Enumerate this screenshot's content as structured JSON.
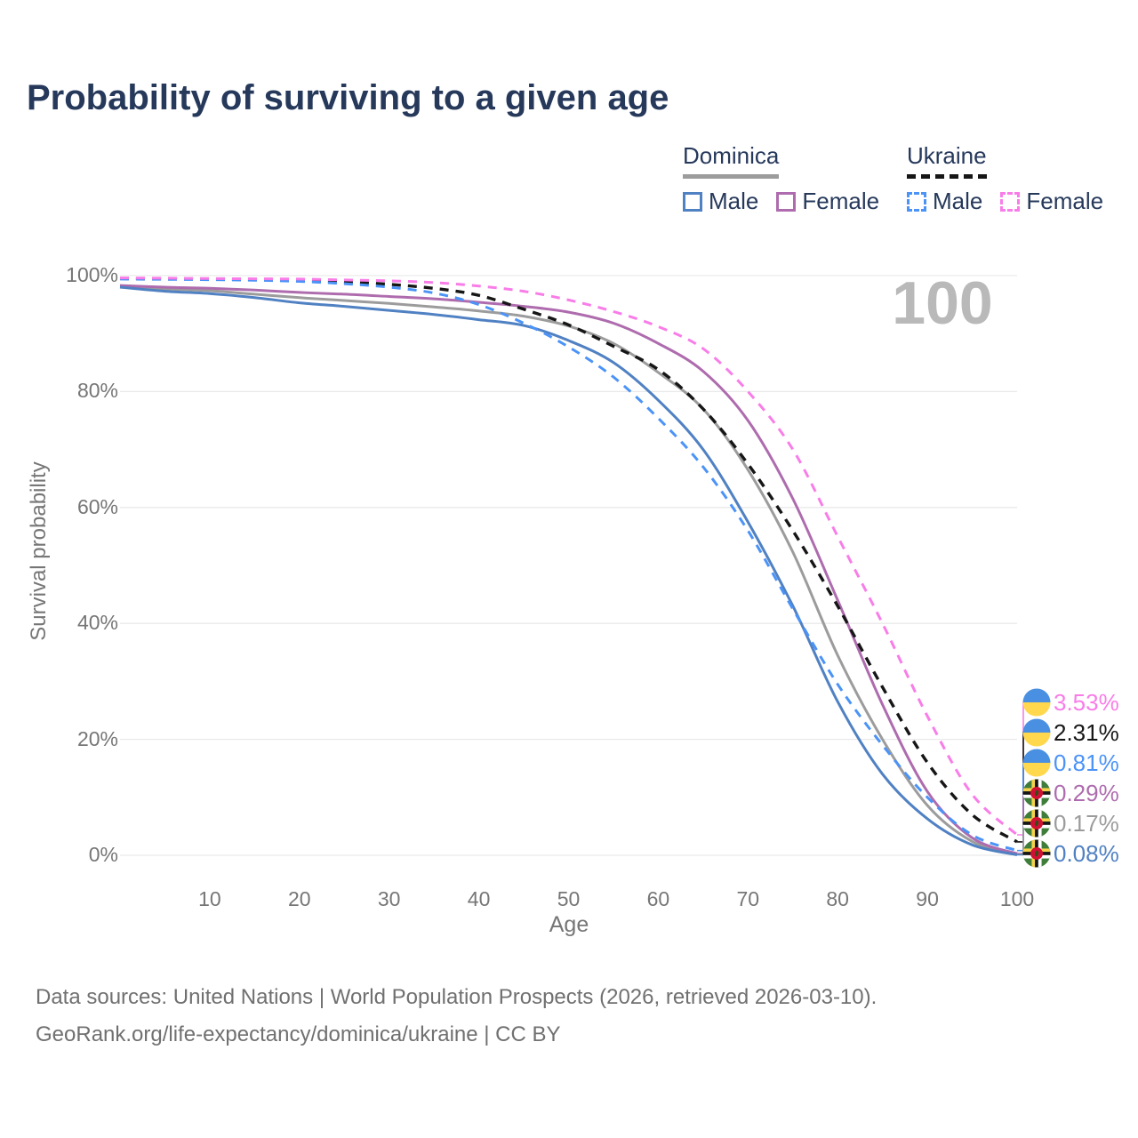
{
  "title": "Probability of surviving to a given age",
  "watermark": "100",
  "legend": {
    "groups": [
      {
        "id": "dominica",
        "name": "Dominica",
        "underline_style": "solid",
        "underline_color": "#9c9c9c",
        "items": [
          {
            "label": "Male",
            "color": "#5081c3",
            "dash": false
          },
          {
            "label": "Female",
            "color": "#ae6cae",
            "dash": false
          }
        ]
      },
      {
        "id": "ukraine",
        "name": "Ukraine",
        "underline_style": "dashed",
        "underline_color": "#161616",
        "items": [
          {
            "label": "Male",
            "color": "#4b93f7",
            "dash": true
          },
          {
            "label": "Female",
            "color": "#f87de8",
            "dash": true
          }
        ]
      }
    ]
  },
  "y_axis": {
    "title": "Survival probability"
  },
  "x_axis": {
    "title": "Age"
  },
  "end_labels": [
    {
      "flag": "ukraine",
      "value": "3.53%",
      "series": "ukraine-female"
    },
    {
      "flag": "ukraine",
      "value": "2.31%",
      "series": "ukraine-total"
    },
    {
      "flag": "ukraine",
      "value": "0.81%",
      "series": "ukraine-male"
    },
    {
      "flag": "dominica",
      "value": "0.29%",
      "series": "dominica-female"
    },
    {
      "flag": "dominica",
      "value": "0.17%",
      "series": "dominica-total"
    },
    {
      "flag": "dominica",
      "value": "0.08%",
      "series": "dominica-male"
    }
  ],
  "footer": {
    "line1": "Data sources: United Nations | World Population Prospects (2026, retrieved 2026-03-10).",
    "line2": "GeoRank.org/life-expectancy/dominica/ukraine | CC BY"
  },
  "colors": {
    "gridline": "#e9e9e9",
    "ukraine_flag_blue": "#4a90e2",
    "ukraine_flag_yellow": "#ffd84d",
    "dominica_flag_green": "#3f7d3a",
    "dominica_flag_red": "#d21034"
  },
  "chart_data": {
    "type": "line",
    "title": "Probability of surviving to a given age",
    "xlabel": "Age",
    "ylabel": "Survival probability",
    "xlim": [
      0,
      100
    ],
    "ylim": [
      0,
      100
    ],
    "grid": "horizontal-only",
    "legend_position": "top-right",
    "x_ticks": [
      10,
      20,
      30,
      40,
      50,
      60,
      70,
      80,
      90,
      100
    ],
    "y_ticks": [
      {
        "value": 0,
        "label": "0%"
      },
      {
        "value": 20,
        "label": "20%"
      },
      {
        "value": 40,
        "label": "40%"
      },
      {
        "value": 60,
        "label": "60%"
      },
      {
        "value": 80,
        "label": "80%"
      },
      {
        "value": 100,
        "label": "100%"
      }
    ],
    "x": [
      0,
      5,
      10,
      15,
      20,
      25,
      30,
      35,
      40,
      45,
      50,
      55,
      60,
      65,
      70,
      75,
      80,
      85,
      90,
      95,
      100
    ],
    "series": [
      {
        "id": "dominica-total",
        "country": "Dominica",
        "group": "All",
        "color": "#9c9c9c",
        "dash": false,
        "values": [
          98.1,
          97.7,
          97.4,
          96.8,
          96.2,
          95.7,
          95.2,
          94.6,
          93.9,
          93.0,
          91.3,
          88.3,
          83.3,
          77.0,
          66.5,
          52.3,
          34.5,
          20.0,
          8.6,
          2.4,
          0.17
        ]
      },
      {
        "id": "dominica-female",
        "country": "Dominica",
        "group": "Female",
        "color": "#ae6cae",
        "dash": false,
        "values": [
          98.3,
          98.0,
          97.8,
          97.5,
          97.1,
          96.8,
          96.4,
          96.0,
          95.4,
          94.7,
          93.7,
          91.8,
          88.3,
          83.5,
          75.0,
          61.5,
          44.0,
          26.0,
          11.0,
          3.0,
          0.29
        ]
      },
      {
        "id": "dominica-male",
        "country": "Dominica",
        "group": "Male",
        "color": "#5081c3",
        "dash": false,
        "values": [
          98.0,
          97.3,
          96.9,
          96.2,
          95.3,
          94.7,
          94.0,
          93.3,
          92.4,
          91.4,
          88.8,
          85.0,
          78.5,
          70.0,
          57.5,
          43.0,
          26.5,
          14.0,
          6.3,
          1.8,
          0.08
        ]
      },
      {
        "id": "ukraine-total",
        "country": "Ukraine",
        "group": "All",
        "color": "#161616",
        "dash": true,
        "values": [
          99.5,
          99.45,
          99.4,
          99.3,
          99.2,
          98.9,
          98.5,
          97.8,
          96.6,
          94.2,
          91.5,
          87.8,
          83.8,
          77.0,
          67.5,
          56.0,
          43.0,
          29.0,
          16.0,
          7.0,
          2.31
        ]
      },
      {
        "id": "ukraine-male",
        "country": "Ukraine",
        "group": "Male",
        "color": "#4b93f7",
        "dash": true,
        "values": [
          99.4,
          99.35,
          99.3,
          99.2,
          99.0,
          98.6,
          98.0,
          97.0,
          95.0,
          91.8,
          87.7,
          82.5,
          75.4,
          67.0,
          56.0,
          42.5,
          29.5,
          19.0,
          10.0,
          3.5,
          0.81
        ]
      },
      {
        "id": "ukraine-female",
        "country": "Ukraine",
        "group": "Female",
        "color": "#f87de8",
        "dash": true,
        "values": [
          99.6,
          99.55,
          99.5,
          99.45,
          99.4,
          99.25,
          99.1,
          98.8,
          98.2,
          97.3,
          95.8,
          93.8,
          91.2,
          87.4,
          80.0,
          70.0,
          55.0,
          40.0,
          24.0,
          10.5,
          3.53
        ]
      }
    ]
  }
}
